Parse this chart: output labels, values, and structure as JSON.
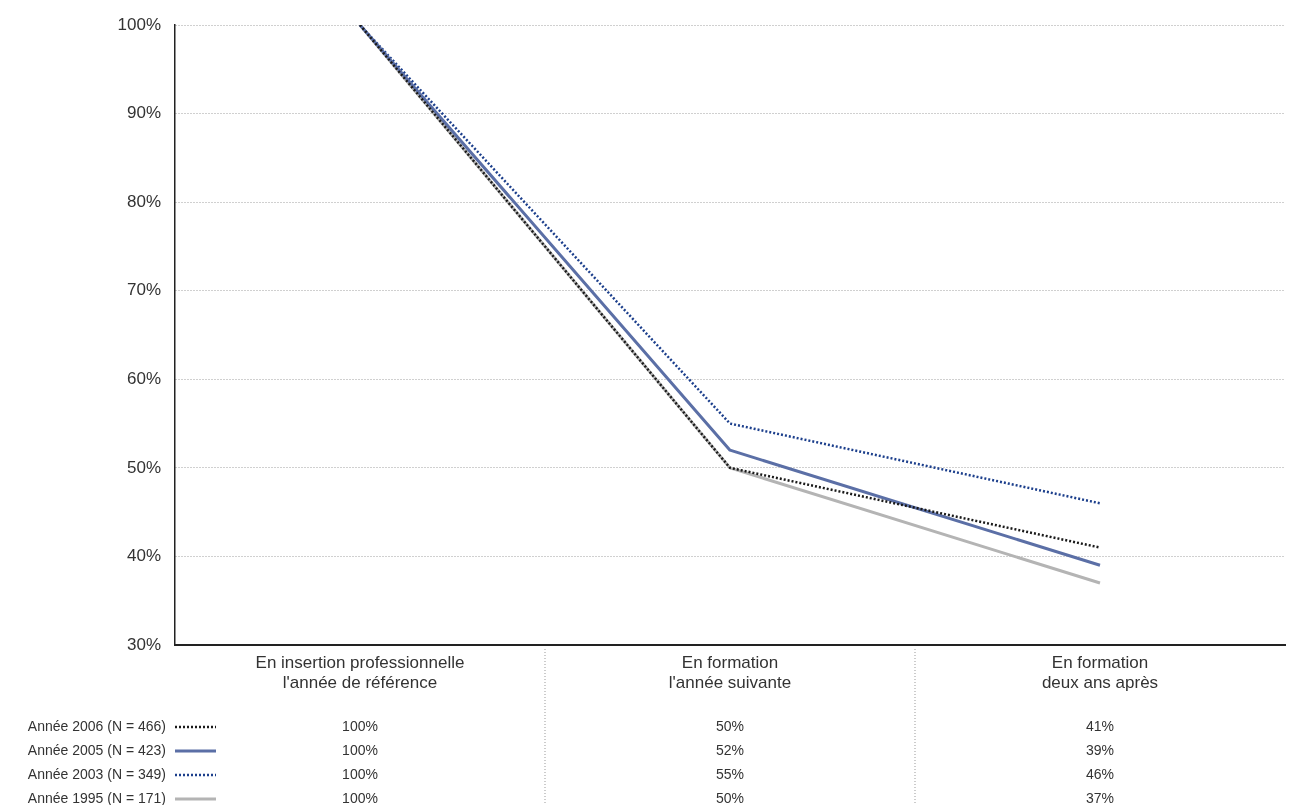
{
  "chart_data": {
    "type": "line",
    "categories": [
      "En insertion professionnelle\nl'année de référence",
      "En formation\nl'année suivante",
      "En formation\ndeux ans après"
    ],
    "series": [
      {
        "name": "Année 2006 (N = 466)",
        "color": "#1a1a1a",
        "line_style": "dotted",
        "values": [
          100,
          50,
          41
        ],
        "value_labels": [
          "100%",
          "50%",
          "41%"
        ]
      },
      {
        "name": "Année 2005 (N = 423)",
        "color": "#5b6fa6",
        "line_style": "solid",
        "values": [
          100,
          52,
          39
        ],
        "value_labels": [
          "100%",
          "52%",
          "39%"
        ]
      },
      {
        "name": "Année 2003 (N = 349)",
        "color": "#1c3f8c",
        "line_style": "dotted",
        "values": [
          100,
          55,
          46
        ],
        "value_labels": [
          "100%",
          "55%",
          "46%"
        ]
      },
      {
        "name": "Année 1995 (N = 171)",
        "color": "#b4b4b4",
        "line_style": "solid",
        "values": [
          100,
          50,
          37
        ],
        "value_labels": [
          "100%",
          "50%",
          "37%"
        ]
      }
    ],
    "ylim": [
      30,
      100
    ],
    "yticks": [
      {
        "value": 30,
        "label": "30%"
      },
      {
        "value": 40,
        "label": "40%"
      },
      {
        "value": 50,
        "label": "50%"
      },
      {
        "value": 60,
        "label": "60%"
      },
      {
        "value": 70,
        "label": "70%"
      },
      {
        "value": 80,
        "label": "80%"
      },
      {
        "value": 90,
        "label": "90%"
      },
      {
        "value": 100,
        "label": "100%"
      }
    ],
    "grid": "y",
    "legend": "bottom left",
    "marker": "none"
  }
}
